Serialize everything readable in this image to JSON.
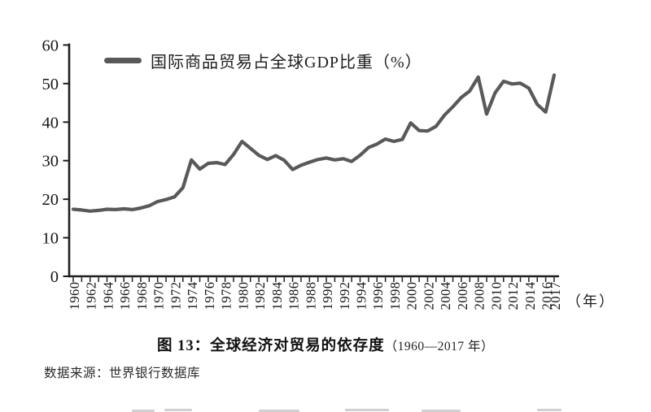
{
  "figure": {
    "caption_main": "图 13：全球经济对贸易的依存度",
    "caption_range": "（1960—2017 年）",
    "source_note": "数据来源：世界银行数据库"
  },
  "chart_data": {
    "type": "line",
    "title": "图 13：全球经济对贸易的依存度（1960—2017 年）",
    "legend": "国际商品贸易占全球GDP比重（%）",
    "legend_position": "top-left",
    "grid": false,
    "line_color": "#595959",
    "axis_color": "#1f1f1f",
    "ylim": [
      0,
      60
    ],
    "y_ticks": [
      0,
      10,
      20,
      30,
      40,
      50,
      60
    ],
    "x_axis_unit": "（年）",
    "x_tick_labels": [
      "1960",
      "1962",
      "1964",
      "1966",
      "1968",
      "1970",
      "1972",
      "1974",
      "1976",
      "1978",
      "1980",
      "1982",
      "1984",
      "1986",
      "1988",
      "1990",
      "1992",
      "1994",
      "1996",
      "1998",
      "2000",
      "2002",
      "2004",
      "2006",
      "2008",
      "2010",
      "2012",
      "2014",
      "2016",
      "2017"
    ],
    "x": [
      1960,
      1961,
      1962,
      1963,
      1964,
      1965,
      1966,
      1967,
      1968,
      1969,
      1970,
      1971,
      1972,
      1973,
      1974,
      1975,
      1976,
      1977,
      1978,
      1979,
      1980,
      1981,
      1982,
      1983,
      1984,
      1985,
      1986,
      1987,
      1988,
      1989,
      1990,
      1991,
      1992,
      1993,
      1994,
      1995,
      1996,
      1997,
      1998,
      1999,
      2000,
      2001,
      2002,
      2003,
      2004,
      2005,
      2006,
      2007,
      2008,
      2009,
      2010,
      2011,
      2012,
      2013,
      2014,
      2015,
      2016,
      2017
    ],
    "series": [
      {
        "name": "国际商品贸易占全球GDP比重（%）",
        "values": [
          17.4,
          17.2,
          16.9,
          17.1,
          17.4,
          17.3,
          17.5,
          17.3,
          17.7,
          18.3,
          19.4,
          19.9,
          20.6,
          23.0,
          30.2,
          27.8,
          29.3,
          29.5,
          29.0,
          31.6,
          35.0,
          33.2,
          31.4,
          30.3,
          31.3,
          30.1,
          27.7,
          28.8,
          29.6,
          30.3,
          30.7,
          30.2,
          30.5,
          29.8,
          31.4,
          33.4,
          34.3,
          35.6,
          35.0,
          35.5,
          39.8,
          37.8,
          37.7,
          38.9,
          41.8,
          44.0,
          46.4,
          48.1,
          51.7,
          42.1,
          47.6,
          50.6,
          49.9,
          50.1,
          48.8,
          44.6,
          42.6,
          52.2
        ]
      }
    ]
  }
}
